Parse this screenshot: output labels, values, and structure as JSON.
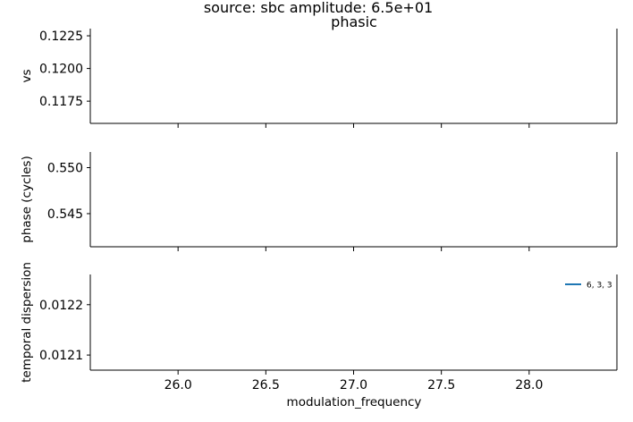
{
  "chart_data": {
    "suptitle": "source: sbc amplitude: 6.5e+01",
    "title": "phasic",
    "xlabel": "modulation_frequency",
    "x_ticks": [
      "26.0",
      "26.5",
      "27.0",
      "27.5",
      "28.0"
    ],
    "x_tick_values": [
      26.0,
      26.5,
      27.0,
      27.5,
      28.0
    ],
    "xlim": [
      25.5,
      28.5
    ],
    "grid": false,
    "legend_placement": "upper-right of bottom panel",
    "panels": [
      {
        "type": "line",
        "ylabel": "vs",
        "y_ticks": [
          "0.1175",
          "0.1200",
          "0.1225"
        ],
        "y_tick_values": [
          0.1175,
          0.12,
          0.1225
        ],
        "ylim": [
          0.1158,
          0.12305
        ],
        "series": []
      },
      {
        "type": "line",
        "ylabel": "phase (cycles)",
        "y_ticks": [
          "0.545",
          "0.550"
        ],
        "y_tick_values": [
          0.545,
          0.55
        ],
        "ylim": [
          0.5414,
          0.5517
        ],
        "series": []
      },
      {
        "type": "line",
        "ylabel": "temporal dispersion",
        "y_ticks": [
          "0.0121",
          "0.0122"
        ],
        "y_tick_values": [
          0.0121,
          0.0122
        ],
        "ylim": [
          0.01207,
          0.01226
        ],
        "series": [
          {
            "name": "6, 3, 3",
            "color": "#1f77b4",
            "x": [],
            "y": []
          }
        ]
      }
    ]
  }
}
